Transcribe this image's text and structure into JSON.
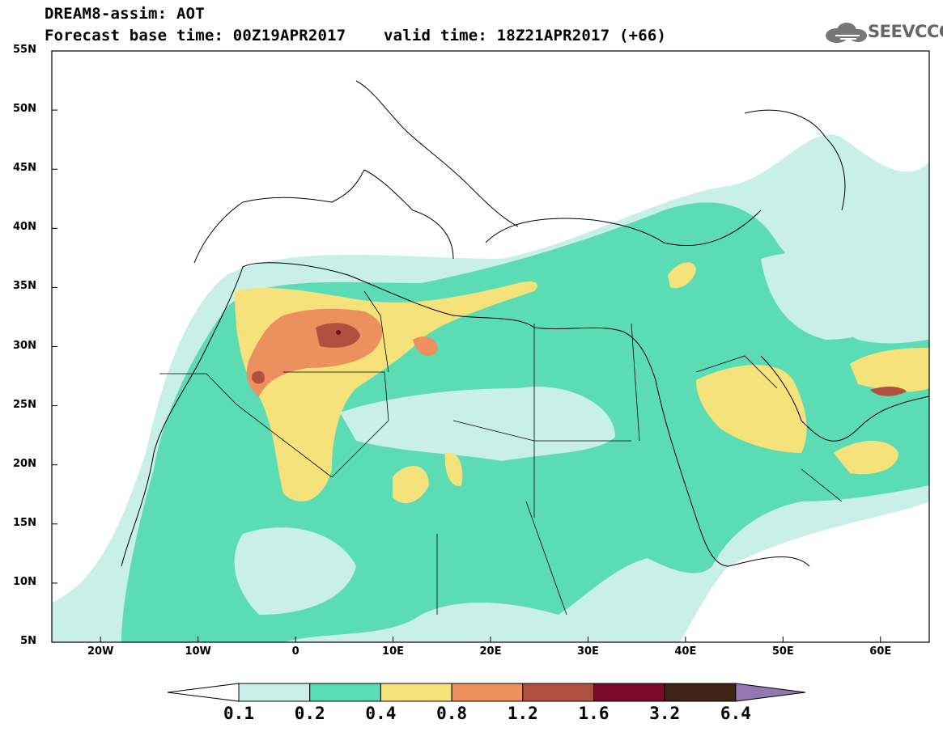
{
  "header": {
    "title_line1": "DREAM8-assim: AOT",
    "title_line2": "Forecast base time: 00Z19APR2017    valid time: 18Z21APR2017 (+66)"
  },
  "logo": {
    "text": "SEEVCCC",
    "icon": "cloud-icon"
  },
  "map": {
    "lat_labels": [
      "55N",
      "50N",
      "45N",
      "40N",
      "35N",
      "30N",
      "25N",
      "20N",
      "15N",
      "10N",
      "5N"
    ],
    "lat_values": [
      55,
      50,
      45,
      40,
      35,
      30,
      25,
      20,
      15,
      10,
      5
    ],
    "lon_labels": [
      "20W",
      "10W",
      "0",
      "10E",
      "20E",
      "30E",
      "40E",
      "50E",
      "60E"
    ],
    "lon_values": [
      -20,
      -10,
      0,
      10,
      20,
      30,
      40,
      50,
      60
    ],
    "extent": {
      "lon_min": -25,
      "lon_max": 65,
      "lat_min": 5,
      "lat_max": 55
    }
  },
  "colorbar": {
    "labels": [
      "0.1",
      "0.2",
      "0.4",
      "0.8",
      "1.2",
      "1.6",
      "3.2",
      "6.4"
    ],
    "colors": [
      "#ffffff",
      "#c8f0e6",
      "#5cdcb4",
      "#f6e27a",
      "#ec9060",
      "#b0503e",
      "#7a0a2a",
      "#3e2414",
      "#9478b4"
    ]
  }
}
